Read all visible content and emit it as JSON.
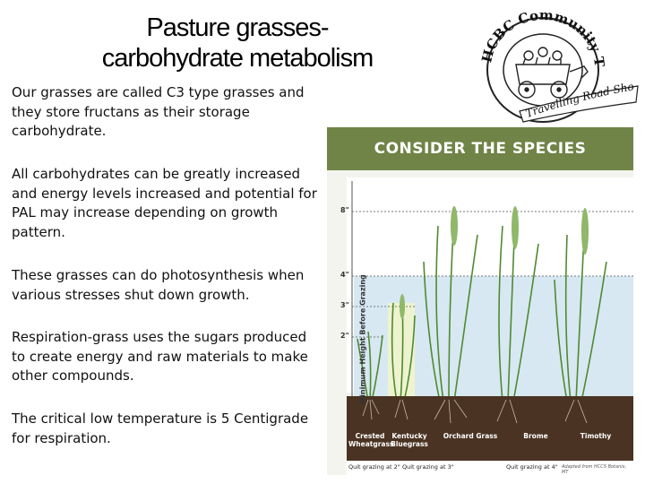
{
  "title": {
    "line1": "Pasture grasses-",
    "line2": "carbohydrate metabolism"
  },
  "paragraphs": [
    "Our grasses are called C3 type grasses and they store fructans as their storage carbohydrate.",
    "All carbohydrates can be greatly increased and energy levels increased and potential for PAL may increase depending on growth pattern.",
    "These grasses can do photosynthesis when various stresses shut down growth.",
    "Respiration-grass uses the sugars produced to create energy and raw materials to make other compounds.",
    "The critical low temperature is 5 Centigrade for respiration."
  ],
  "logo": {
    "ring_text": "HCBC Community Talks",
    "ribbon_text": "Travelling Road Show"
  },
  "figure": {
    "banner": "CONSIDER THE SPECIES",
    "axis_label": "Minimum Height Before Grazing",
    "ticks": [
      "8\"",
      "4\"",
      "3\"",
      "2\""
    ],
    "species": [
      {
        "line1": "Crested",
        "line2": "Wheatgrass"
      },
      {
        "line1": "Kentucky",
        "line2": "Bluegrass"
      },
      {
        "line1": "Orchard Grass",
        "line2": ""
      },
      {
        "line1": "Brome",
        "line2": ""
      },
      {
        "line1": "Timothy",
        "line2": ""
      }
    ],
    "quit_grazing": [
      "Quit grazing at 2\"",
      "Quit grazing at 3\"",
      "Quit grazing at 4\""
    ],
    "credit": "Adapted from HCCS Botanix, MT"
  },
  "colors": {
    "banner": "#6f8446",
    "soil": "#4a3322",
    "grass": "#4f8a2f",
    "band_blue": "#d7e8f2",
    "band_yellow": "#eef3cf"
  }
}
